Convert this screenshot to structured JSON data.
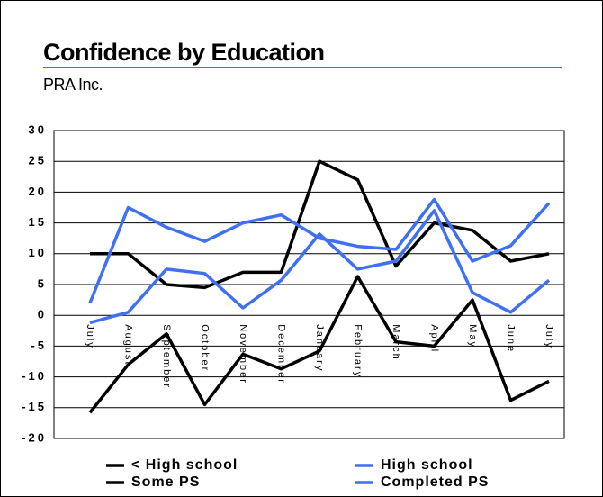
{
  "chart_data": {
    "type": "line",
    "title": "Confidence by Education",
    "subtitle": "PRA Inc.",
    "categories": [
      "July",
      "August",
      "September",
      "October",
      "November",
      "December",
      "January",
      "February",
      "March",
      "April",
      "May",
      "June",
      "July"
    ],
    "series": [
      {
        "name": "< High school",
        "color": "#000000",
        "values": [
          10,
          10,
          5,
          4.5,
          7,
          7,
          25,
          22,
          8,
          15,
          13.8,
          8.8,
          10
        ]
      },
      {
        "name": "High school",
        "color": "#3f6ff2",
        "values": [
          2,
          17.5,
          14.3,
          12,
          15,
          16.3,
          12.5,
          11.2,
          10.7,
          18.8,
          8.8,
          11.3,
          18.2
        ]
      },
      {
        "name": "Some PS",
        "color": "#000000",
        "values": [
          -15.8,
          -8,
          -3,
          -14.5,
          -6.3,
          -8.7,
          -5.8,
          6.3,
          -4.3,
          -5,
          2.5,
          -13.8,
          -10.7
        ]
      },
      {
        "name": "Completed PS",
        "color": "#3f6ff2",
        "values": [
          -1.2,
          0.5,
          7.5,
          6.8,
          1.2,
          5.7,
          13.2,
          7.5,
          8.8,
          17,
          3.7,
          0.5,
          5.7
        ]
      }
    ],
    "ylim": [
      -20,
      30
    ],
    "yticks": [
      -20,
      -15,
      -10,
      -5,
      0,
      5,
      10,
      15,
      20,
      25,
      30
    ],
    "grid": true
  }
}
